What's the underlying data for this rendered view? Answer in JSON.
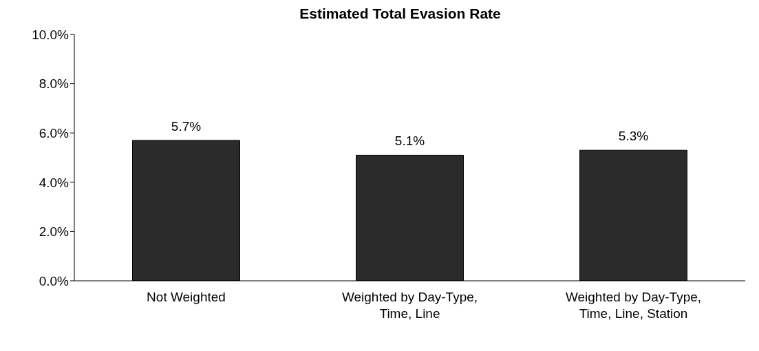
{
  "chart_data": {
    "type": "bar",
    "title": "Estimated Total Evasion Rate",
    "categories": [
      "Not Weighted",
      "Weighted by Day-Type, Time, Line",
      "Weighted by Day-Type, Time, Line, Station"
    ],
    "values": [
      5.7,
      5.1,
      5.3
    ],
    "color": "#2b2b2b",
    "value_labels": [
      "5.7%",
      "5.1%",
      "5.3%"
    ],
    "ylim": [
      0,
      10
    ],
    "yticks": [
      {
        "value": 0,
        "label": "0.0%"
      },
      {
        "value": 2,
        "label": "2.0%"
      },
      {
        "value": 4,
        "label": "4.0%"
      },
      {
        "value": 6,
        "label": "6.0%"
      },
      {
        "value": 8,
        "label": "8.0%"
      },
      {
        "value": 10,
        "label": "10.0%"
      }
    ],
    "grid": false
  }
}
